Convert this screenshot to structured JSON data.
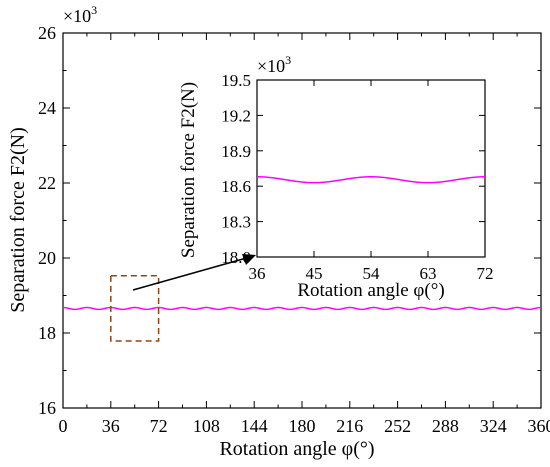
{
  "chart_data": [
    {
      "type": "line",
      "xlabel": "Rotation angle φ(°)",
      "ylabel": "Separation force F2(N)",
      "y_multiplier": "×10",
      "y_multiplier_exp": "3",
      "xlim": [
        0,
        360
      ],
      "ylim": [
        16,
        26
      ],
      "xticks": [
        "0",
        "36",
        "72",
        "108",
        "144",
        "180",
        "216",
        "252",
        "288",
        "324",
        "360"
      ],
      "yticks": [
        "16",
        "18",
        "20",
        "22",
        "24",
        "26"
      ],
      "series": [
        {
          "color": "#ff00ff",
          "mean": 18.655,
          "amplitude": 0.025,
          "period_deg": 18
        }
      ],
      "zoom_box": {
        "x_range": [
          36,
          72
        ],
        "y_range": [
          18.0,
          19.5
        ],
        "color": "#8b4513"
      }
    },
    {
      "type": "line",
      "xlabel": "Rotation angle φ(°)",
      "ylabel": "Separation force F2(N)",
      "y_multiplier": "×10",
      "y_multiplier_exp": "3",
      "xlim": [
        36,
        72
      ],
      "ylim": [
        18.0,
        19.5
      ],
      "xticks": [
        "36",
        "45",
        "54",
        "63",
        "72"
      ],
      "yticks": [
        "18.0",
        "18.3",
        "18.6",
        "18.9",
        "19.2",
        "19.5"
      ],
      "series": [
        {
          "color": "#ff00ff",
          "mean": 18.655,
          "amplitude": 0.025,
          "period_deg": 18
        }
      ]
    }
  ]
}
